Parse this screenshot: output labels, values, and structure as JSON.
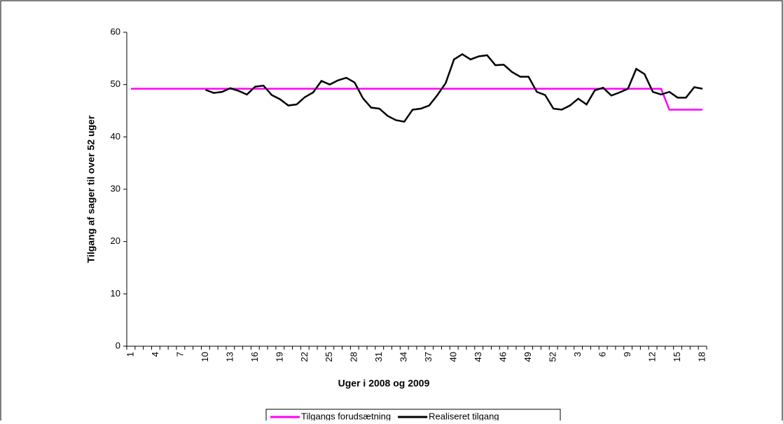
{
  "chart_data": {
    "type": "line",
    "y_label": "Tilgang af sager til over 52 uger",
    "x_label": "Uger i 2008 og 2009",
    "categories": [
      "1",
      null,
      null,
      "4",
      null,
      null,
      "7",
      null,
      null,
      "10",
      null,
      null,
      "13",
      null,
      null,
      "16",
      null,
      null,
      "19",
      null,
      null,
      "22",
      null,
      null,
      "25",
      null,
      null,
      "28",
      null,
      null,
      "31",
      null,
      null,
      "34",
      null,
      null,
      "37",
      null,
      null,
      "40",
      null,
      null,
      "43",
      null,
      null,
      "46",
      null,
      null,
      "49",
      null,
      null,
      "52",
      null,
      null,
      "3",
      null,
      null,
      "6",
      null,
      null,
      "9",
      null,
      null,
      "12",
      null,
      null,
      "15",
      null,
      null,
      "18"
    ],
    "series": [
      {
        "name": "Tilgangs forudsætning",
        "color": "#ff00ff",
        "values": [
          49.2,
          49.2,
          49.2,
          49.2,
          49.2,
          49.2,
          49.2,
          49.2,
          49.2,
          49.2,
          49.2,
          49.2,
          49.2,
          49.2,
          49.2,
          49.2,
          49.2,
          49.2,
          49.2,
          49.2,
          49.2,
          49.2,
          49.2,
          49.2,
          49.2,
          49.2,
          49.2,
          49.2,
          49.2,
          49.2,
          49.2,
          49.2,
          49.2,
          49.2,
          49.2,
          49.2,
          49.2,
          49.2,
          49.2,
          49.2,
          49.2,
          49.2,
          49.2,
          49.2,
          49.2,
          49.2,
          49.2,
          49.2,
          49.2,
          49.2,
          49.2,
          49.2,
          49.2,
          49.2,
          49.2,
          49.2,
          49.2,
          49.2,
          49.2,
          49.2,
          49.2,
          49.2,
          49.2,
          49.2,
          49.2,
          45.2,
          45.2,
          45.2,
          45.2,
          45.2
        ]
      },
      {
        "name": "Realiseret tilgang",
        "color": "#000000",
        "values": [
          null,
          null,
          null,
          null,
          null,
          null,
          null,
          null,
          null,
          49.0,
          48.4,
          48.6,
          49.3,
          48.8,
          48.1,
          49.6,
          49.8,
          48.0,
          47.2,
          46.0,
          46.2,
          47.6,
          48.5,
          50.7,
          50.0,
          50.8,
          51.3,
          50.4,
          47.4,
          45.6,
          45.4,
          44.0,
          43.2,
          42.9,
          45.2,
          45.4,
          46.0,
          48.0,
          50.3,
          54.8,
          55.8,
          54.8,
          55.4,
          55.6,
          53.7,
          53.8,
          52.4,
          51.5,
          51.5,
          48.6,
          48.0,
          45.4,
          45.2,
          46.0,
          47.3,
          46.2,
          48.9,
          49.4,
          47.9,
          48.5,
          49.2,
          53.0,
          52.0,
          48.6,
          48.1,
          48.6,
          47.5,
          47.5,
          49.5,
          49.2
        ]
      }
    ],
    "ylim": [
      0,
      60
    ],
    "yticks": [
      0,
      10,
      20,
      30,
      40,
      50,
      60
    ],
    "legend": "bottom"
  }
}
